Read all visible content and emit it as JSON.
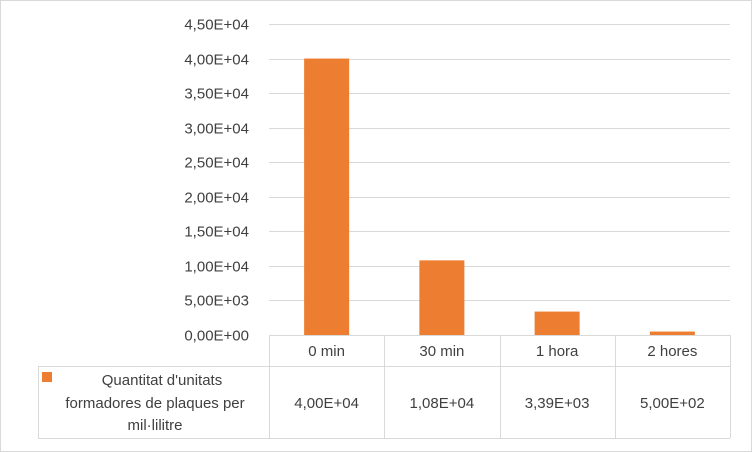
{
  "chart_data": {
    "type": "bar",
    "categories": [
      "0 min",
      "30 min",
      "1 hora",
      "2 hores"
    ],
    "series": [
      {
        "name": "Quantitat d'unitats formadores de plaques per mil·lilitre",
        "legend_lines": [
          "Quantitat d'unitats",
          "formadores de plaques per",
          "mil·lilitre"
        ],
        "values": [
          40000,
          10800,
          3390,
          500
        ],
        "value_labels": [
          "4,00E+04",
          "1,08E+04",
          "3,39E+03",
          "5,00E+02"
        ],
        "color": "#ed7d31"
      }
    ],
    "y_ticks": [
      "0,00E+00",
      "5,00E+03",
      "1,00E+04",
      "1,50E+04",
      "2,00E+04",
      "2,50E+04",
      "3,00E+04",
      "3,50E+04",
      "4,00E+04",
      "4,50E+04"
    ],
    "ylim": [
      0,
      45000
    ],
    "title": "",
    "xlabel": "",
    "ylabel": "",
    "grid": true,
    "legend": "data-table"
  }
}
